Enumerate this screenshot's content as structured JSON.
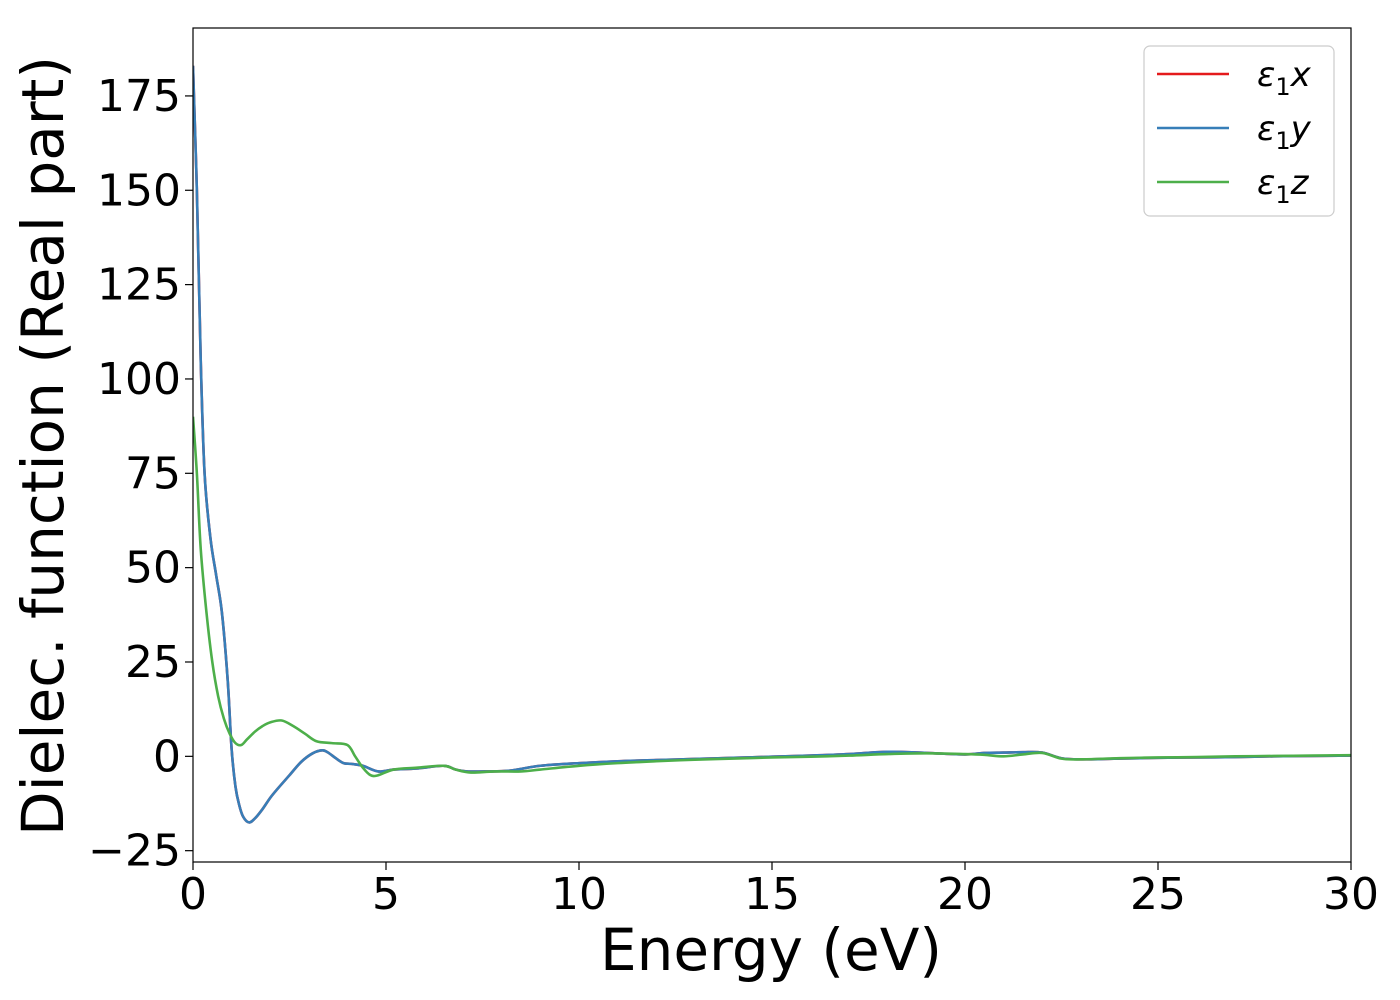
{
  "chart_data": {
    "type": "line",
    "title": "",
    "xlabel": "Energy (eV)",
    "ylabel": "Dielec. function (Real part)",
    "xlim": [
      0,
      30
    ],
    "ylim": [
      -28,
      193
    ],
    "xticks": [
      0,
      5,
      10,
      15,
      20,
      25,
      30
    ],
    "yticks": [
      -25,
      0,
      25,
      50,
      75,
      100,
      125,
      150,
      175
    ],
    "grid": false,
    "legend_position": "top-right",
    "series": [
      {
        "name": "ε₁x",
        "legend": {
          "main": "ε",
          "sub": "1",
          "axis": "x"
        },
        "color": "#e41a1c",
        "x": [
          0,
          0.1,
          0.2,
          0.3,
          0.45,
          0.6,
          0.75,
          0.9,
          1.0,
          1.1,
          1.2,
          1.3,
          1.45,
          1.6,
          1.8,
          2.0,
          2.2,
          2.5,
          2.8,
          3.1,
          3.35,
          3.5,
          3.7,
          3.9,
          4.1,
          4.4,
          4.8,
          5.2,
          5.8,
          6.5,
          6.8,
          7.1,
          7.6,
          8.2,
          9.0,
          10.0,
          11.0,
          12.0,
          13.0,
          14.0,
          15.0,
          16.0,
          17.0,
          18.0,
          19.0,
          20.0,
          20.5,
          21.0,
          21.5,
          22.0,
          22.5,
          23.0,
          24.0,
          25.0,
          26.0,
          27.0,
          28.0,
          29.0,
          30.0
        ],
        "values": [
          183,
          150,
          105,
          75,
          58,
          48,
          38,
          20,
          2,
          -8,
          -13,
          -16,
          -17.5,
          -16.5,
          -14,
          -11,
          -8.5,
          -5,
          -1.5,
          0.8,
          1.6,
          1.0,
          -0.5,
          -1.8,
          -2.0,
          -2.5,
          -4.0,
          -3.5,
          -3.2,
          -2.5,
          -3.5,
          -4.0,
          -4.0,
          -3.8,
          -2.5,
          -1.8,
          -1.3,
          -1.0,
          -0.7,
          -0.4,
          -0.1,
          0.2,
          0.6,
          1.2,
          0.9,
          0.5,
          0.9,
          1.0,
          1.1,
          1.0,
          -0.5,
          -0.8,
          -0.6,
          -0.4,
          -0.3,
          -0.2,
          0.0,
          0.1,
          0.2
        ]
      },
      {
        "name": "ε₁y",
        "legend": {
          "main": "ε",
          "sub": "1",
          "axis": "y"
        },
        "color": "#377eb8",
        "x": [
          0,
          0.1,
          0.2,
          0.3,
          0.45,
          0.6,
          0.75,
          0.9,
          1.0,
          1.1,
          1.2,
          1.3,
          1.45,
          1.6,
          1.8,
          2.0,
          2.2,
          2.5,
          2.8,
          3.1,
          3.35,
          3.5,
          3.7,
          3.9,
          4.1,
          4.4,
          4.8,
          5.2,
          5.8,
          6.5,
          6.8,
          7.1,
          7.6,
          8.2,
          9.0,
          10.0,
          11.0,
          12.0,
          13.0,
          14.0,
          15.0,
          16.0,
          17.0,
          18.0,
          19.0,
          20.0,
          20.5,
          21.0,
          21.5,
          22.0,
          22.5,
          23.0,
          24.0,
          25.0,
          26.0,
          27.0,
          28.0,
          29.0,
          30.0
        ],
        "values": [
          183,
          150,
          105,
          75,
          58,
          48,
          38,
          20,
          2,
          -8,
          -13,
          -16,
          -17.5,
          -16.5,
          -14,
          -11,
          -8.5,
          -5,
          -1.5,
          0.8,
          1.6,
          1.0,
          -0.5,
          -1.8,
          -2.0,
          -2.5,
          -4.0,
          -3.5,
          -3.2,
          -2.5,
          -3.5,
          -4.0,
          -4.0,
          -3.8,
          -2.5,
          -1.8,
          -1.3,
          -1.0,
          -0.7,
          -0.4,
          -0.1,
          0.2,
          0.6,
          1.2,
          0.9,
          0.5,
          0.9,
          1.0,
          1.1,
          1.0,
          -0.5,
          -0.8,
          -0.6,
          -0.4,
          -0.3,
          -0.2,
          0.0,
          0.1,
          0.2
        ]
      },
      {
        "name": "ε₁z",
        "legend": {
          "main": "ε",
          "sub": "1",
          "axis": "z"
        },
        "color": "#4daf4a",
        "x": [
          0,
          0.1,
          0.2,
          0.35,
          0.5,
          0.65,
          0.8,
          0.95,
          1.1,
          1.25,
          1.4,
          1.6,
          1.8,
          2.0,
          2.3,
          2.6,
          2.9,
          3.2,
          3.6,
          4.0,
          4.2,
          4.4,
          4.6,
          4.8,
          5.2,
          5.8,
          6.5,
          6.8,
          7.2,
          7.8,
          8.5,
          9.0,
          10.0,
          11.0,
          12.0,
          13.0,
          14.0,
          15.0,
          16.0,
          17.0,
          18.0,
          19.0,
          20.0,
          20.5,
          21.0,
          21.5,
          22.0,
          22.5,
          23.0,
          24.0,
          25.0,
          26.0,
          27.0,
          28.0,
          29.0,
          30.0
        ],
        "values": [
          90,
          75,
          55,
          38,
          25,
          16,
          10,
          6,
          3.5,
          3,
          4.5,
          6.5,
          8,
          9,
          9.5,
          8,
          6,
          4,
          3.5,
          3,
          0,
          -3,
          -5,
          -5,
          -3.5,
          -3,
          -2.5,
          -3.5,
          -4.3,
          -4.0,
          -4.0,
          -3.5,
          -2.5,
          -1.8,
          -1.3,
          -0.9,
          -0.6,
          -0.3,
          -0.1,
          0.2,
          0.6,
          0.8,
          0.6,
          0.4,
          0.0,
          0.5,
          0.9,
          -0.6,
          -0.8,
          -0.5,
          -0.3,
          -0.2,
          0.0,
          0.1,
          0.2,
          0.3
        ]
      }
    ]
  }
}
